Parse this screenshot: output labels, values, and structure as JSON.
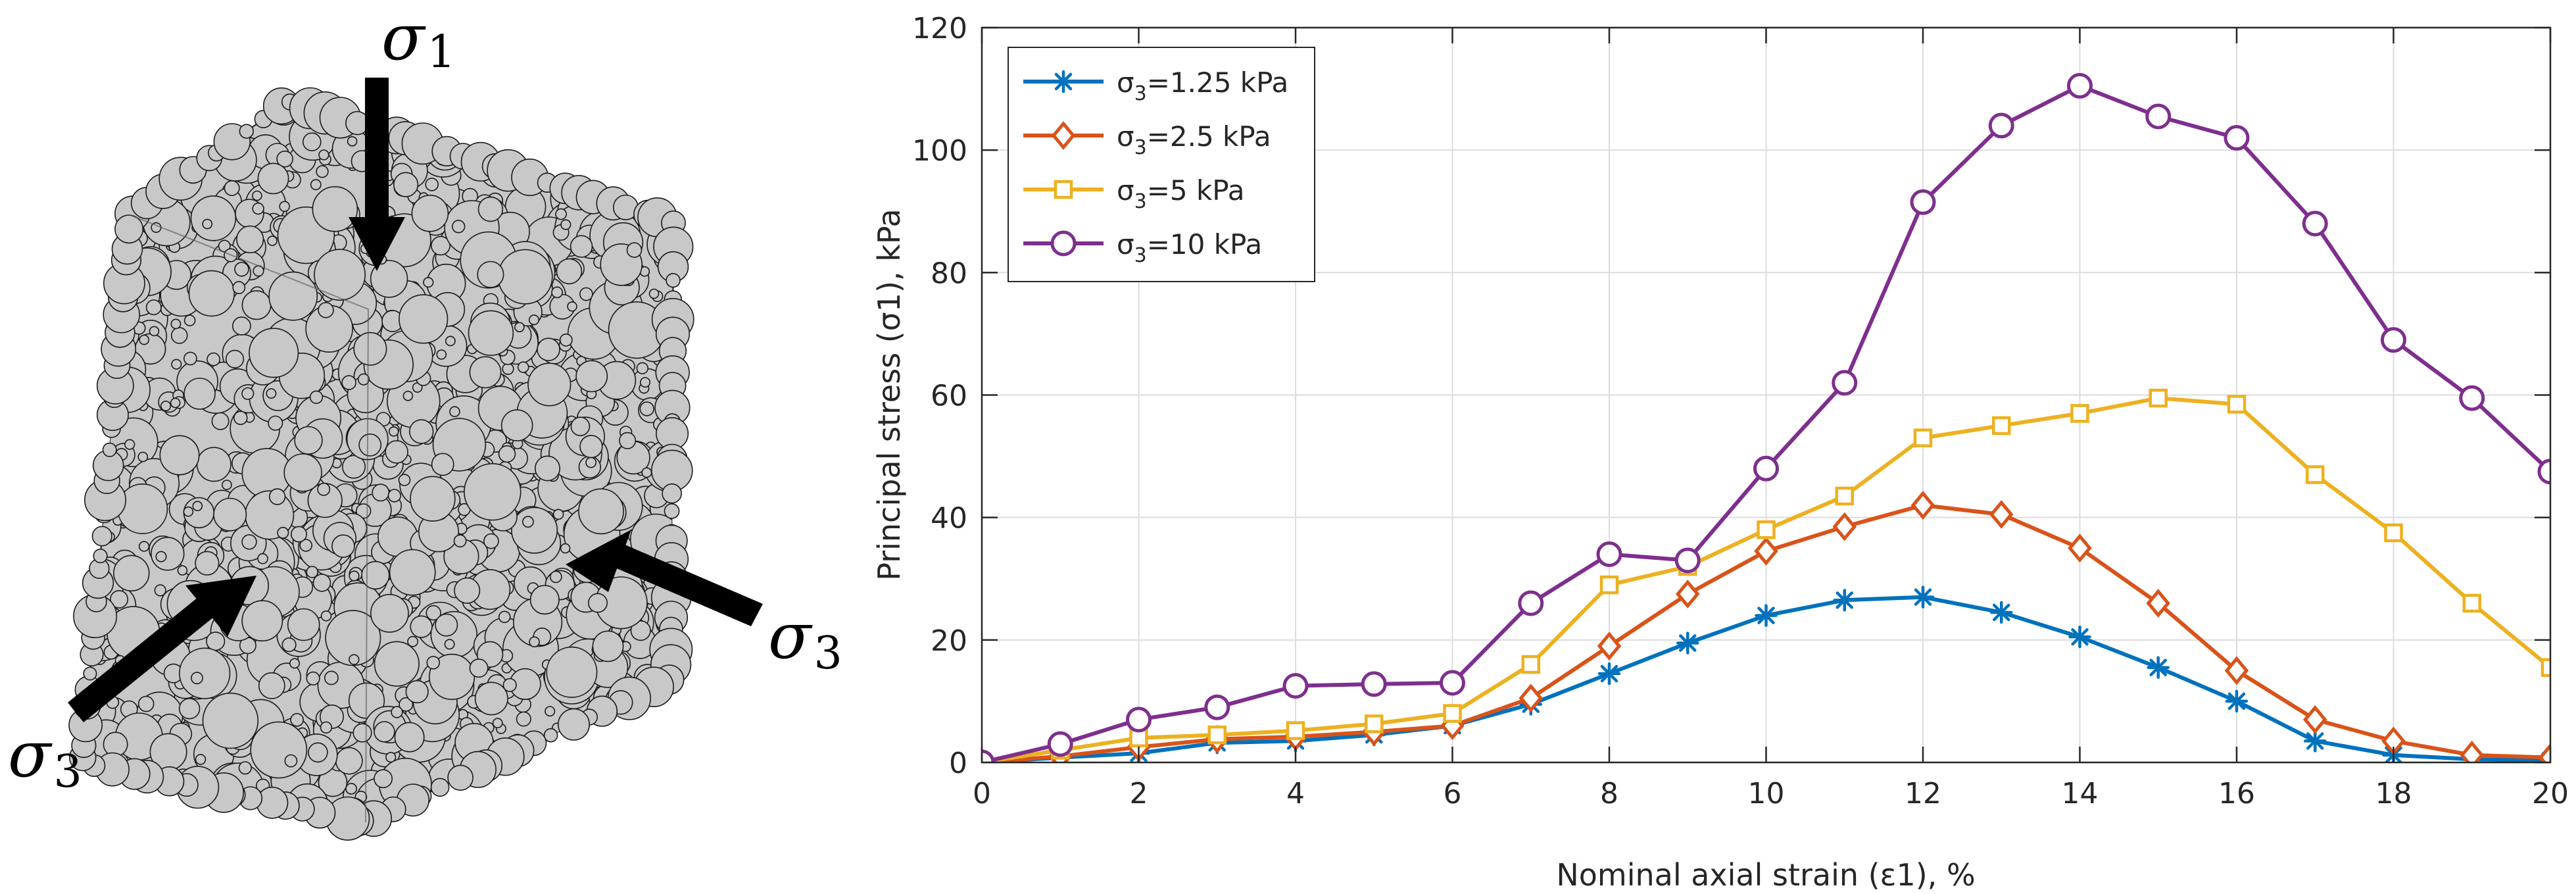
{
  "figure": {
    "labels": {
      "sigma_symbol": "σ",
      "top_subscript": "1",
      "right_subscript": "3",
      "left_subscript": "3"
    },
    "colors": {
      "particle_fill": "#c8c8c8",
      "particle_stroke": "#1a1a1a",
      "arrow": "#000000"
    }
  },
  "chart_data": {
    "type": "line",
    "xlabel": "Nominal axial strain (ε1), %",
    "ylabel": "Principal stress (σ1), kPa",
    "xlim": [
      0,
      20
    ],
    "ylim": [
      0,
      120
    ],
    "xticks": [
      0,
      2,
      4,
      6,
      8,
      10,
      12,
      14,
      16,
      18,
      20
    ],
    "yticks": [
      0,
      20,
      40,
      60,
      80,
      100,
      120
    ],
    "grid": true,
    "legend_position": "top-left",
    "x": [
      0,
      1,
      2,
      3,
      4,
      5,
      6,
      7,
      8,
      9,
      10,
      11,
      12,
      13,
      14,
      15,
      16,
      17,
      18,
      19,
      20
    ],
    "series": [
      {
        "name": "σ3=1.25 kPa",
        "legend_prefix": "σ",
        "legend_sub": "3",
        "legend_suffix": "=1.25 kPa",
        "color": "#0072bd",
        "marker": "asterisk",
        "values": [
          0,
          0.8,
          1.5,
          3.2,
          3.5,
          4.5,
          6,
          9.5,
          14.5,
          19.5,
          24,
          26.5,
          27,
          24.5,
          20.5,
          15.5,
          10,
          3.5,
          1.2,
          0.5,
          0.3
        ]
      },
      {
        "name": "σ3=2.5 kPa",
        "legend_prefix": "σ",
        "legend_sub": "3",
        "legend_suffix": "=2.5 kPa",
        "color": "#d95319",
        "marker": "diamond",
        "values": [
          0,
          1,
          2.5,
          3.8,
          4.2,
          5,
          6,
          10.5,
          19,
          27.5,
          34.5,
          38.5,
          42,
          40.5,
          35,
          26,
          15,
          7,
          3.5,
          1.2,
          0.8
        ]
      },
      {
        "name": "σ3=5 kPa",
        "legend_prefix": "σ",
        "legend_sub": "3",
        "legend_suffix": "=5 kPa",
        "color": "#edb120",
        "marker": "square",
        "values": [
          0,
          2,
          4,
          4.5,
          5.2,
          6.3,
          8,
          16,
          29,
          32,
          38,
          43.5,
          53,
          55,
          57,
          59.5,
          58.5,
          47,
          37.5,
          26,
          15.5
        ]
      },
      {
        "name": "σ3=10 kPa",
        "legend_prefix": "σ",
        "legend_sub": "3",
        "legend_suffix": "=10 kPa",
        "color": "#7e2f8e",
        "marker": "circle",
        "values": [
          0,
          3,
          7,
          9,
          12.5,
          12.8,
          13,
          26,
          34,
          33,
          48,
          62,
          91.5,
          104,
          110.5,
          105.5,
          102,
          88,
          69,
          59.5,
          47.5
        ]
      }
    ]
  }
}
